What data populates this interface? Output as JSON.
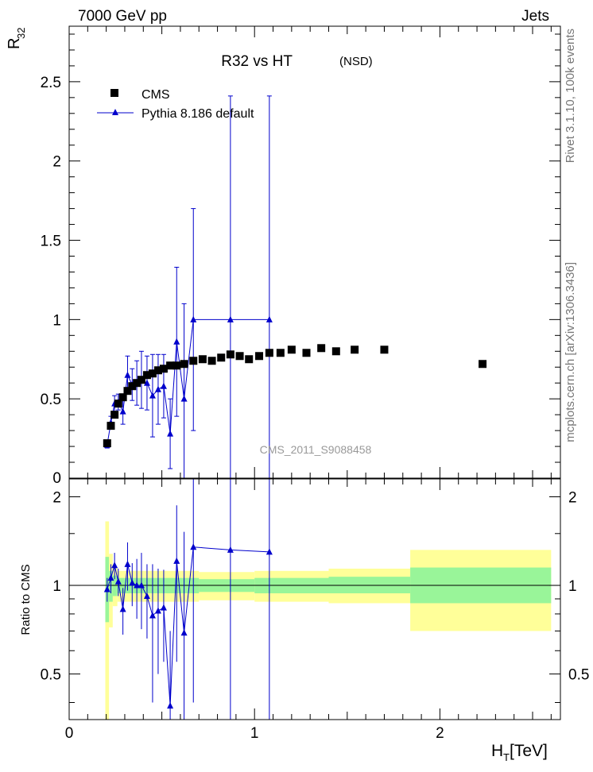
{
  "header": {
    "left": "7000 GeV pp",
    "right": "Jets",
    "title": "R32 vs HT",
    "subtitle": "(NSD)",
    "watermark": "CMS_2011_S9088458",
    "side_top": "Rivet 3.1.10,  100k events",
    "side_bottom": "mcplots.cern.ch [arXiv:1306.3436]"
  },
  "colors": {
    "data": "#000000",
    "mc": "#0000cc",
    "band_inner": "#99f599",
    "band_outer": "#ffff99",
    "watermark": "#999999"
  },
  "chart_data": [
    {
      "type": "scatter",
      "name": "main",
      "ylabel_main": "R",
      "ylabel_sub": "32",
      "xlim": [
        0,
        2.65
      ],
      "ylim": [
        0,
        2.85
      ],
      "yticks": [
        0.5,
        1,
        1.5,
        2,
        2.5
      ],
      "ytick_labels": [
        "0.5",
        "1",
        "1.5",
        "2",
        "2.5"
      ],
      "y_axis_bottom_label": "0",
      "legend": [
        {
          "label": "CMS",
          "marker": "square",
          "color": "#000000"
        },
        {
          "label": "Pythia 8.186 default",
          "marker": "triangle",
          "color": "#0000cc"
        }
      ],
      "legend_position": "top-left",
      "series": [
        {
          "name": "CMS",
          "x": [
            0.205,
            0.225,
            0.245,
            0.265,
            0.29,
            0.315,
            0.34,
            0.365,
            0.39,
            0.42,
            0.45,
            0.48,
            0.51,
            0.545,
            0.58,
            0.62,
            0.67,
            0.72,
            0.77,
            0.82,
            0.87,
            0.92,
            0.97,
            1.025,
            1.08,
            1.14,
            1.2,
            1.28,
            1.36,
            1.44,
            1.54,
            1.7,
            2.23
          ],
          "y": [
            0.22,
            0.33,
            0.4,
            0.47,
            0.51,
            0.55,
            0.58,
            0.6,
            0.62,
            0.65,
            0.66,
            0.68,
            0.69,
            0.71,
            0.71,
            0.72,
            0.74,
            0.75,
            0.74,
            0.76,
            0.78,
            0.77,
            0.75,
            0.77,
            0.79,
            0.79,
            0.81,
            0.79,
            0.82,
            0.8,
            0.81,
            0.81,
            0.72
          ]
        },
        {
          "name": "Pythia 8.186 default",
          "x": [
            0.205,
            0.225,
            0.245,
            0.265,
            0.29,
            0.315,
            0.34,
            0.365,
            0.39,
            0.42,
            0.45,
            0.48,
            0.51,
            0.545,
            0.58,
            0.62,
            0.67,
            0.87,
            1.08
          ],
          "y": [
            0.21,
            0.35,
            0.47,
            0.48,
            0.42,
            0.65,
            0.59,
            0.6,
            0.62,
            0.6,
            0.52,
            0.56,
            0.58,
            0.28,
            0.86,
            0.5,
            1.0,
            1.0,
            1.0
          ],
          "yerr": [
            0.02,
            0.04,
            0.05,
            0.05,
            0.08,
            0.12,
            0.1,
            0.14,
            0.18,
            0.17,
            0.26,
            0.22,
            0.2,
            0.22,
            0.47,
            0.6,
            0.7,
            1.41,
            1.41
          ]
        }
      ]
    },
    {
      "type": "scatter",
      "name": "ratio",
      "xlabel_main": "H",
      "xlabel_sub": "T",
      "xlabel_unit": " [TeV]",
      "ylabel": "Ratio to CMS",
      "xlim": [
        0,
        2.65
      ],
      "ylim": [
        0.35,
        2.3
      ],
      "xticks": [
        0,
        1,
        2
      ],
      "xtick_labels": [
        "0",
        "1",
        "2"
      ],
      "yticks": [
        0.5,
        1,
        2
      ],
      "ytick_labels": [
        "0.5",
        "1",
        "2"
      ],
      "bands": [
        {
          "x0": 0.195,
          "x1": 0.215,
          "inner": [
            0.75,
            1.25
          ],
          "outer": [
            0.35,
            1.65
          ]
        },
        {
          "x0": 0.215,
          "x1": 0.235,
          "inner": [
            0.88,
            1.12
          ],
          "outer": [
            0.72,
            1.28
          ]
        },
        {
          "x0": 0.235,
          "x1": 0.26,
          "inner": [
            0.92,
            1.08
          ],
          "outer": [
            0.85,
            1.15
          ]
        },
        {
          "x0": 0.26,
          "x1": 0.7,
          "inner": [
            0.94,
            1.06
          ],
          "outer": [
            0.88,
            1.12
          ]
        },
        {
          "x0": 0.7,
          "x1": 1.0,
          "inner": [
            0.95,
            1.05
          ],
          "outer": [
            0.89,
            1.11
          ]
        },
        {
          "x0": 1.0,
          "x1": 1.4,
          "inner": [
            0.94,
            1.06
          ],
          "outer": [
            0.88,
            1.12
          ]
        },
        {
          "x0": 1.4,
          "x1": 1.84,
          "inner": [
            0.94,
            1.07
          ],
          "outer": [
            0.87,
            1.14
          ]
        },
        {
          "x0": 1.84,
          "x1": 2.6,
          "inner": [
            0.87,
            1.15
          ],
          "outer": [
            0.7,
            1.32
          ]
        }
      ],
      "ratio": {
        "x": [
          0.205,
          0.225,
          0.245,
          0.265,
          0.29,
          0.315,
          0.34,
          0.365,
          0.39,
          0.42,
          0.45,
          0.48,
          0.51,
          0.545,
          0.58,
          0.62,
          0.67,
          0.87,
          1.08
        ],
        "y": [
          0.97,
          1.06,
          1.17,
          1.03,
          0.83,
          1.18,
          1.02,
          1.0,
          1.0,
          0.92,
          0.79,
          0.82,
          0.84,
          0.39,
          1.21,
          0.69,
          1.35,
          1.32,
          1.3
        ],
        "yerr": [
          0.09,
          0.12,
          0.12,
          0.11,
          0.15,
          0.22,
          0.17,
          0.23,
          0.29,
          0.26,
          0.39,
          0.32,
          0.29,
          0.31,
          0.66,
          0.83,
          0.95,
          1.85,
          1.83
        ]
      }
    }
  ]
}
